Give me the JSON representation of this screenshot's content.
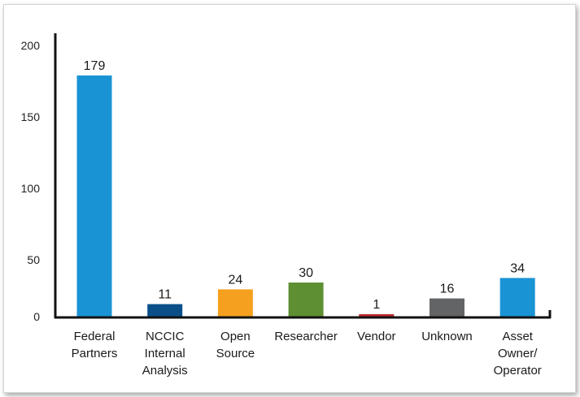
{
  "chart_data": {
    "type": "bar",
    "title": "",
    "xlabel": "",
    "ylabel": "",
    "categories": [
      [
        "Federal",
        "Partners"
      ],
      [
        "NCCIC",
        "Internal",
        "Analysis"
      ],
      [
        "Open",
        "Source"
      ],
      [
        "Researcher"
      ],
      [
        "Vendor"
      ],
      [
        "Unknown"
      ],
      [
        "Asset",
        "Owner/",
        "Operator"
      ]
    ],
    "values": [
      179,
      11,
      24,
      30,
      1,
      16,
      34
    ],
    "value_labels": [
      "179",
      "11",
      "24",
      "30",
      "1",
      "16",
      "34"
    ],
    "colors": [
      "#1a93d5",
      "#0b4f8a",
      "#f5a11f",
      "#5e8f32",
      "#c0282c",
      "#636466",
      "#1a93d5"
    ],
    "y_ticks": [
      {
        "value": 0,
        "label": "0"
      },
      {
        "value": 50,
        "label": "50"
      },
      {
        "value": 100,
        "label": "100"
      },
      {
        "value": 150,
        "label": "150"
      },
      {
        "value": 200,
        "label": "200"
      }
    ],
    "ylim": [
      0,
      200
    ],
    "grid": false,
    "axis_color": "#111111"
  }
}
